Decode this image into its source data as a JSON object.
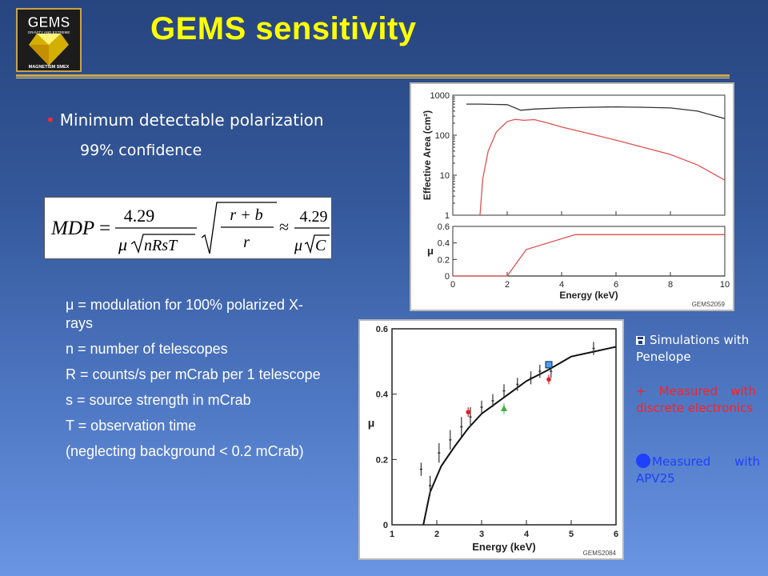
{
  "logo": {
    "lines": [
      "GEMS",
      "GRAVITY AND EXTREME",
      "MAGNETISM SMEX"
    ]
  },
  "title": "GEMS sensitivity",
  "bullet": "Minimum detectable polarization",
  "sub_bullet": "99% confidence",
  "equation": {
    "lhs": "MDP",
    "eq": "=",
    "num": "4.29",
    "den_mu": "μ",
    "den_rad": "nRsT",
    "sqrt_num": "r + b",
    "sqrt_den": "r",
    "approx": "≈",
    "num2": "4.29",
    "den2_rad": "C"
  },
  "definitions": [
    "μ = modulation for 100% polarized X-rays",
    "n = number of telescopes",
    "R = counts/s per mCrab per 1 telescope",
    "s = source strength in mCrab",
    "T = observation time",
    "(neglecting background < 0.2 mCrab)"
  ],
  "legend": {
    "sim_icon": "floppy-disk-icon",
    "sim": "Simulations with Penelope",
    "meas": "+ Measured with discrete electronics",
    "apv_icon": "blue-circle-icon",
    "apv": "Measured with APV25",
    "colors": {
      "sim": "#ffffff",
      "meas": "#ff2020",
      "apv": "#1e40ff"
    }
  },
  "chart_data": [
    {
      "id": "effective-area",
      "type": "line",
      "ylabel": "Effective Area (cm²)",
      "yscale": "log",
      "ylim": [
        1,
        1000
      ],
      "xlim": [
        0,
        10
      ],
      "yticks": [
        "1",
        "10",
        "100",
        "1000"
      ],
      "series": [
        {
          "color": "#333333",
          "x": [
            0.5,
            1,
            1.5,
            2,
            2.5,
            3,
            4,
            5,
            6,
            7,
            8,
            9,
            10
          ],
          "y": [
            600,
            600,
            590,
            580,
            420,
            450,
            480,
            500,
            510,
            500,
            480,
            400,
            260
          ]
        },
        {
          "color": "#e05050",
          "x": [
            1,
            1.1,
            1.3,
            1.6,
            2,
            2.3,
            2.6,
            3,
            3.5,
            4,
            5,
            6,
            7,
            8,
            9,
            10
          ],
          "y": [
            1,
            8,
            40,
            120,
            220,
            250,
            235,
            245,
            200,
            160,
            110,
            75,
            50,
            33,
            18,
            7.5
          ]
        }
      ]
    },
    {
      "id": "modulation-top",
      "type": "line",
      "ylabel": "μ",
      "xlabel": "Energy (keV)",
      "xlim": [
        0,
        10
      ],
      "ylim": [
        0,
        0.6
      ],
      "xticks": [
        "0",
        "2",
        "4",
        "6",
        "8",
        "10"
      ],
      "yticks": [
        "0",
        "0.2",
        "0.4",
        "0.6"
      ],
      "footer": "GEMS2059",
      "series": [
        {
          "color": "#333333",
          "x": [
            0,
            2,
            10
          ],
          "y": [
            0,
            0,
            0
          ]
        },
        {
          "color": "#e05050",
          "x": [
            0,
            2,
            2.7,
            4.5,
            10
          ],
          "y": [
            0,
            0,
            0.32,
            0.5,
            0.5
          ]
        }
      ]
    },
    {
      "id": "modulation-measured",
      "type": "scatter",
      "ylabel": "μ",
      "xlabel": "Energy (keV)",
      "xlim": [
        1,
        6
      ],
      "ylim": [
        0,
        0.6
      ],
      "xticks": [
        "1",
        "2",
        "3",
        "4",
        "5",
        "6"
      ],
      "yticks": [
        "0",
        "0.2",
        "0.4",
        "0.6"
      ],
      "footer": "GEMS2084",
      "curve": {
        "x": [
          1.7,
          1.85,
          2.1,
          2.4,
          2.7,
          3.0,
          3.3,
          3.6,
          4.0,
          4.5,
          5.0,
          5.5,
          6.0
        ],
        "y": [
          0,
          0.1,
          0.18,
          0.24,
          0.295,
          0.34,
          0.37,
          0.4,
          0.44,
          0.475,
          0.515,
          0.53,
          0.545
        ]
      },
      "simulations": {
        "x": [
          1.65,
          1.85,
          2.05,
          2.3,
          2.55,
          2.75,
          3.0,
          3.25,
          3.5,
          3.8,
          4.1,
          4.3,
          4.55,
          5.5
        ],
        "y": [
          0.17,
          0.12,
          0.22,
          0.26,
          0.3,
          0.33,
          0.36,
          0.38,
          0.41,
          0.43,
          0.45,
          0.47,
          0.47,
          0.54
        ],
        "err": [
          0.02,
          0.03,
          0.03,
          0.03,
          0.03,
          0.03,
          0.02,
          0.02,
          0.02,
          0.02,
          0.02,
          0.02,
          0.02,
          0.02
        ]
      },
      "measured_discrete": {
        "x": [
          2.7,
          4.5
        ],
        "y": [
          0.345,
          0.445
        ],
        "color": "#e0202a"
      },
      "measured_green": {
        "x": [
          3.5
        ],
        "y": [
          0.355
        ],
        "color": "#40b040"
      },
      "measured_apv": {
        "x": [
          4.5
        ],
        "y": [
          0.49
        ],
        "color": "#4aa0ff"
      }
    }
  ]
}
